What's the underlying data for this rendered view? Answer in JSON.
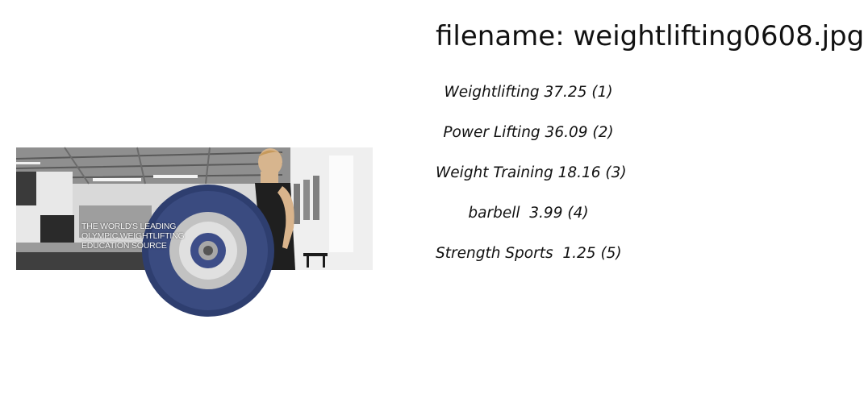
{
  "filename": "filename: weightlifting0608.jpg",
  "photo": {
    "caption_lines": [
      "THE WORLD'S LEADING",
      "OLYMPIC WEIGHTLIFTING",
      "EDUCATION SOURCE"
    ]
  },
  "predictions": [
    "Weightlifting 37.25 (1)",
    "Power Lifting 36.09 (2)",
    "Weight Training 18.16 (3)",
    "barbell  3.99 (4)",
    "Strength Sports  1.25 (5)"
  ]
}
